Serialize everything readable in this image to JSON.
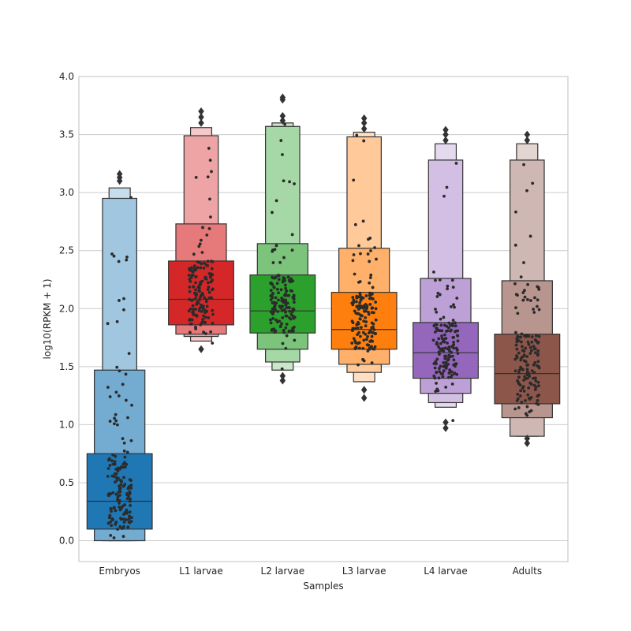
{
  "chart_data": {
    "type": "boxen",
    "title": "",
    "xlabel": "Samples",
    "ylabel": "log10(RPKM + 1)",
    "ylim": [
      -0.18,
      4.0
    ],
    "yticks": [
      0.0,
      0.5,
      1.0,
      1.5,
      2.0,
      2.5,
      3.0,
      3.5,
      4.0
    ],
    "ytick_labels": [
      "0.0",
      "0.5",
      "1.0",
      "1.5",
      "2.0",
      "2.5",
      "3.0",
      "3.5",
      "4.0"
    ],
    "grid": "horizontal",
    "categories": [
      "Embryos",
      "L1 larvae",
      "L2 larvae",
      "L3 larvae",
      "L4 larvae",
      "Adults"
    ],
    "series": [
      {
        "category": "Embryos",
        "color": "#1f77b4",
        "median": 0.34,
        "boxes": [
          [
            0.0,
            3.04
          ],
          [
            0.0,
            2.95
          ],
          [
            0.0,
            1.47
          ],
          [
            0.1,
            0.75
          ]
        ],
        "outliers": [
          3.1,
          3.13,
          3.16
        ],
        "range": [
          0.0,
          3.07
        ]
      },
      {
        "category": "L1 larvae",
        "color": "#d62728",
        "median": 2.08,
        "boxes": [
          [
            1.72,
            3.56
          ],
          [
            1.76,
            3.49
          ],
          [
            1.78,
            2.73
          ],
          [
            1.86,
            2.41
          ]
        ],
        "outliers": [
          1.65,
          3.6,
          3.65,
          3.7
        ],
        "range": [
          1.68,
          3.58
        ]
      },
      {
        "category": "L2 larvae",
        "color": "#2ca02c",
        "median": 1.98,
        "boxes": [
          [
            1.47,
            3.6
          ],
          [
            1.54,
            3.57
          ],
          [
            1.65,
            2.56
          ],
          [
            1.79,
            2.29
          ]
        ],
        "outliers": [
          1.38,
          1.42,
          3.62,
          3.66,
          3.8,
          3.82
        ],
        "range": [
          1.4,
          3.68
        ]
      },
      {
        "category": "L3 larvae",
        "color": "#ff7f0e",
        "median": 1.82,
        "boxes": [
          [
            1.37,
            3.52
          ],
          [
            1.45,
            3.48
          ],
          [
            1.52,
            2.52
          ],
          [
            1.65,
            2.14
          ]
        ],
        "outliers": [
          1.23,
          1.3,
          3.55,
          3.6,
          3.64
        ],
        "range": [
          1.28,
          3.62
        ]
      },
      {
        "category": "L4 larvae",
        "color": "#9467bd",
        "median": 1.62,
        "boxes": [
          [
            1.15,
            3.42
          ],
          [
            1.19,
            3.28
          ],
          [
            1.27,
            2.26
          ],
          [
            1.4,
            1.88
          ]
        ],
        "outliers": [
          0.97,
          1.02,
          3.45,
          3.5,
          3.54
        ],
        "range": [
          1.0,
          3.48
        ]
      },
      {
        "category": "Adults",
        "color": "#8c564b",
        "median": 1.44,
        "boxes": [
          [
            0.9,
            3.42
          ],
          [
            0.9,
            3.28
          ],
          [
            1.06,
            2.24
          ],
          [
            1.18,
            1.78
          ]
        ],
        "outliers": [
          0.84,
          0.88,
          3.45,
          3.5
        ],
        "range": [
          0.86,
          3.48
        ]
      }
    ]
  }
}
